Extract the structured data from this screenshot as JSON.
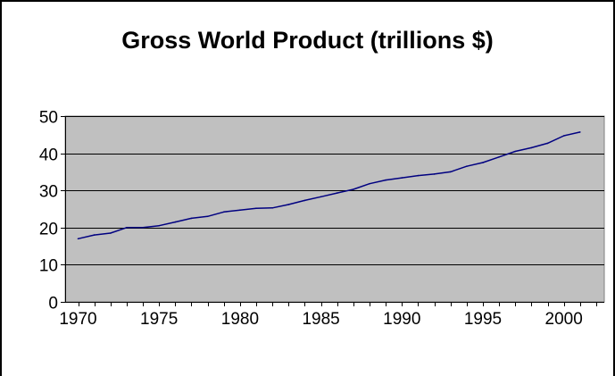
{
  "chart_data": {
    "type": "line",
    "title": "Gross World Product (trillions $)",
    "xlabel": "",
    "ylabel": "",
    "xlim": [
      1969.2,
      2002.5
    ],
    "ylim": [
      0,
      50
    ],
    "yticks": [
      0,
      10,
      20,
      30,
      40,
      50
    ],
    "xticks": [
      1970,
      1975,
      1980,
      1985,
      1990,
      1995,
      2000
    ],
    "grid": "horizontal",
    "legend": "none",
    "plot_background": "#c0c0c0",
    "line_color": "#000080",
    "series": [
      {
        "x": [
          1970,
          1971,
          1972,
          1973,
          1974,
          1975,
          1976,
          1977,
          1978,
          1979,
          1980,
          1981,
          1982,
          1983,
          1984,
          1985,
          1986,
          1987,
          1988,
          1989,
          1990,
          1991,
          1992,
          1993,
          1994,
          1995,
          1996,
          1997,
          1998,
          1999,
          2000,
          2001
        ],
        "values": [
          17.0,
          18.0,
          18.5,
          20.0,
          20.0,
          20.5,
          21.5,
          22.5,
          23.0,
          24.2,
          24.7,
          25.2,
          25.3,
          26.2,
          27.3,
          28.3,
          29.3,
          30.3,
          31.8,
          32.8,
          33.4,
          34.0,
          34.4,
          35.0,
          36.5,
          37.5,
          39.0,
          40.5,
          41.5,
          42.7,
          44.7,
          45.7
        ]
      }
    ]
  }
}
